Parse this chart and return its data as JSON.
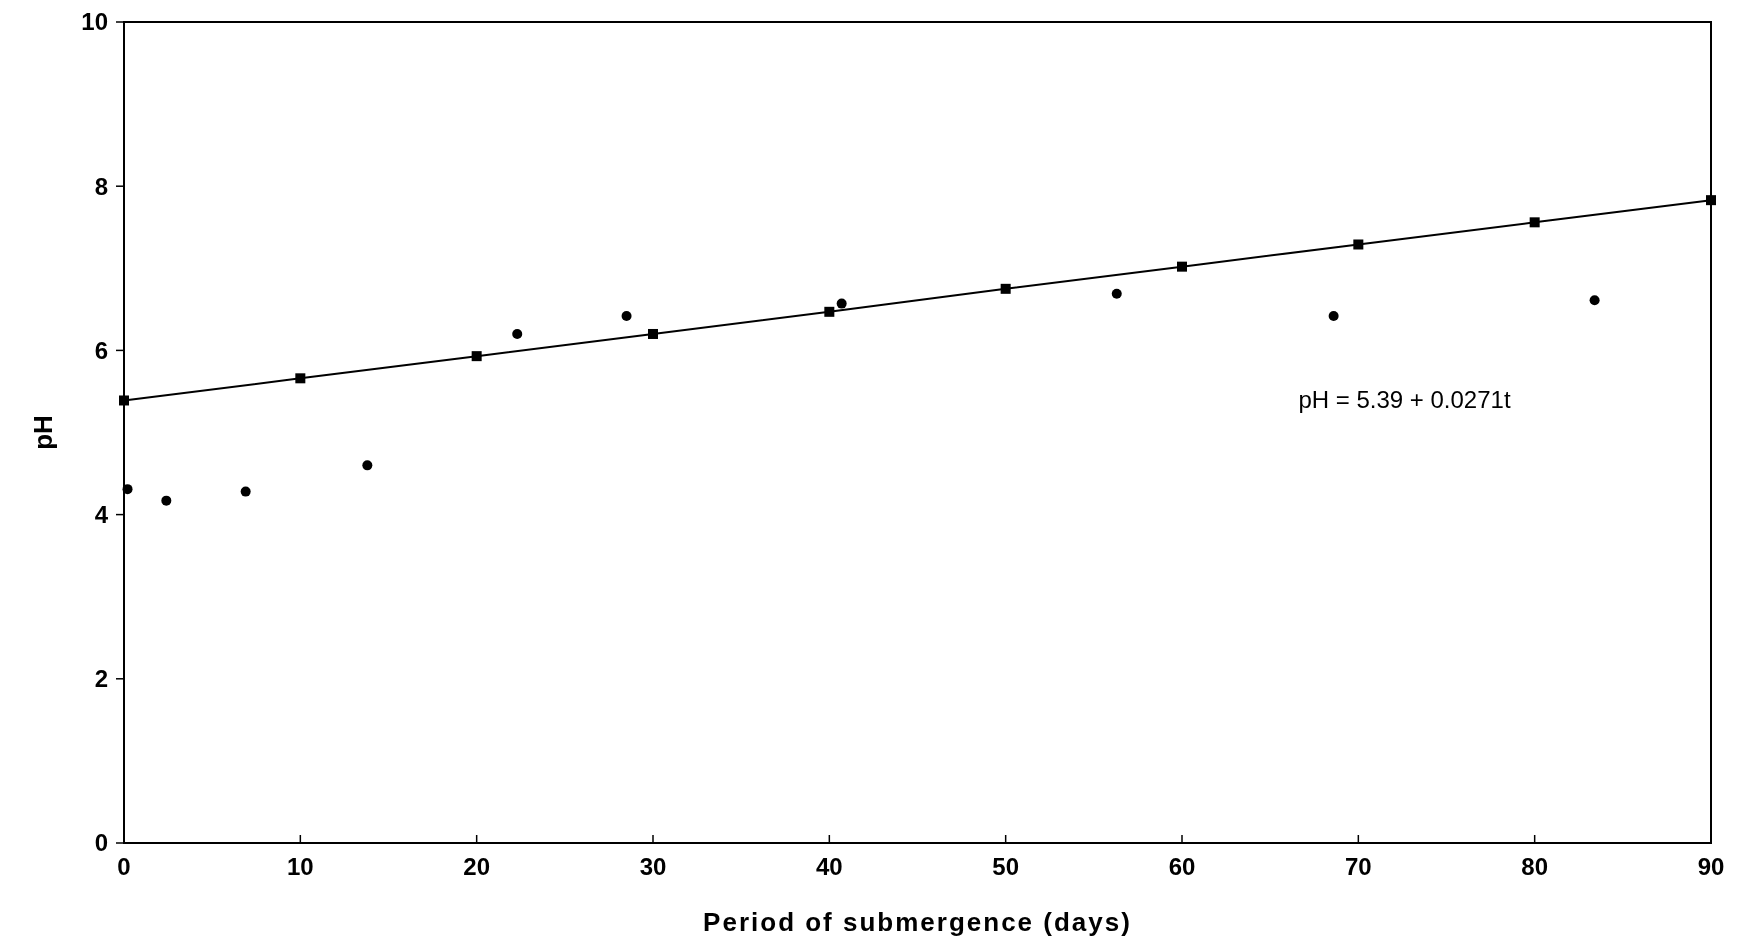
{
  "chart_data": {
    "type": "scatter",
    "xlabel": "Period of submergence (days)",
    "ylabel": "pH",
    "xlim": [
      0,
      90
    ],
    "xticks": [
      0,
      10,
      20,
      30,
      40,
      50,
      60,
      70,
      80,
      90
    ],
    "ylim": [
      0,
      10
    ],
    "yticks": [
      0,
      2,
      4,
      6,
      8,
      10
    ],
    "grid": false,
    "series": [
      {
        "marker": "circle",
        "color": "#000000",
        "x": [
          0.2,
          2.4,
          6.9,
          13.8,
          22.3,
          28.5,
          40.7,
          56.3,
          68.6,
          83.4
        ],
        "values": [
          4.31,
          4.17,
          4.28,
          4.6,
          6.2,
          6.42,
          6.57,
          6.69,
          6.42,
          6.61
        ]
      },
      {
        "type": "line",
        "marker": "square",
        "line_style": "solid",
        "color": "#000000",
        "x": [
          0,
          10,
          20,
          30,
          40,
          50,
          60,
          70,
          80,
          90
        ],
        "values": [
          5.39,
          5.66,
          5.93,
          6.2,
          6.47,
          6.75,
          7.02,
          7.29,
          7.56,
          7.83
        ]
      }
    ],
    "annotations": [
      "pH = 5.39 + 0.0271t"
    ]
  }
}
